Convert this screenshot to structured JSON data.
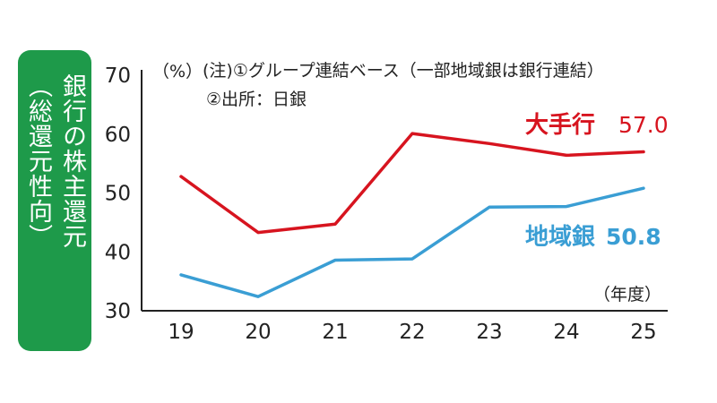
{
  "side_title": {
    "line1": "銀行の株主還元",
    "line2": "（総還元性向）"
  },
  "colors": {
    "panel": "#1e9a4a",
    "major_banks": "#d7141f",
    "regional_banks": "#3a9ed4",
    "axis": "#222222"
  },
  "chart_data": {
    "type": "line",
    "ylabel": "（%）",
    "xlabel": "（年度）",
    "ylim": [
      30,
      70
    ],
    "yticks": [
      30,
      40,
      50,
      60,
      70
    ],
    "x": [
      "19",
      "20",
      "21",
      "22",
      "23",
      "24",
      "25"
    ],
    "notes": [
      "(注)①グループ連結ベース（一部地域銀は銀行連結）",
      "②出所：日銀"
    ],
    "series": [
      {
        "name": "大手行",
        "value_label": "57.0",
        "values": [
          52.8,
          43.3,
          44.7,
          60.1,
          58.4,
          56.4,
          57.0
        ]
      },
      {
        "name": "地域銀",
        "value_label": "50.8",
        "values": [
          36.1,
          32.4,
          38.6,
          38.8,
          47.6,
          47.7,
          50.8
        ]
      }
    ]
  }
}
